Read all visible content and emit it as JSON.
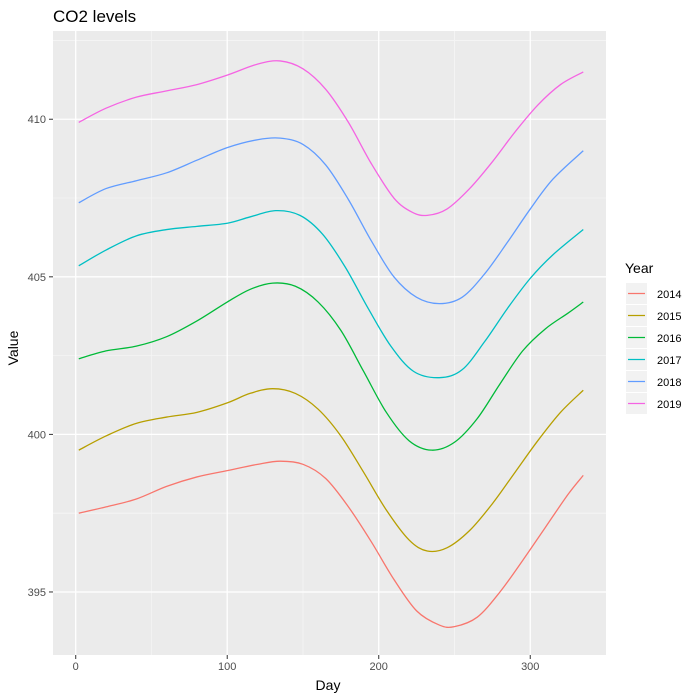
{
  "chart_data": {
    "type": "line",
    "title": "CO2 levels",
    "xlabel": "Day",
    "ylabel": "Value",
    "xlim": [
      -15,
      350
    ],
    "ylim": [
      393,
      412.8
    ],
    "x_ticks": [
      0,
      100,
      200,
      300
    ],
    "y_ticks": [
      395,
      400,
      405,
      410
    ],
    "grid": true,
    "legend": {
      "title": "Year",
      "placement": "right"
    },
    "series": [
      {
        "name": "2014",
        "color": "#F8766D",
        "points": [
          [
            2,
            397.5
          ],
          [
            20,
            397.7
          ],
          [
            40,
            397.95
          ],
          [
            60,
            398.35
          ],
          [
            80,
            398.65
          ],
          [
            100,
            398.85
          ],
          [
            120,
            399.05
          ],
          [
            135,
            399.15
          ],
          [
            150,
            399.05
          ],
          [
            165,
            398.6
          ],
          [
            180,
            397.7
          ],
          [
            195,
            396.6
          ],
          [
            210,
            395.4
          ],
          [
            225,
            394.4
          ],
          [
            240,
            393.95
          ],
          [
            250,
            393.9
          ],
          [
            265,
            394.2
          ],
          [
            280,
            395.0
          ],
          [
            295,
            396.0
          ],
          [
            310,
            397.05
          ],
          [
            325,
            398.1
          ],
          [
            335,
            398.7
          ]
        ]
      },
      {
        "name": "2015",
        "color": "#B79F00",
        "points": [
          [
            2,
            399.5
          ],
          [
            20,
            399.95
          ],
          [
            40,
            400.35
          ],
          [
            60,
            400.55
          ],
          [
            80,
            400.7
          ],
          [
            100,
            401.0
          ],
          [
            115,
            401.3
          ],
          [
            130,
            401.45
          ],
          [
            145,
            401.3
          ],
          [
            160,
            400.8
          ],
          [
            175,
            399.95
          ],
          [
            190,
            398.8
          ],
          [
            205,
            397.6
          ],
          [
            220,
            396.65
          ],
          [
            232,
            396.3
          ],
          [
            245,
            396.4
          ],
          [
            260,
            396.95
          ],
          [
            275,
            397.8
          ],
          [
            290,
            398.8
          ],
          [
            305,
            399.8
          ],
          [
            320,
            400.7
          ],
          [
            335,
            401.4
          ]
        ]
      },
      {
        "name": "2016",
        "color": "#00BA38",
        "points": [
          [
            2,
            402.4
          ],
          [
            20,
            402.65
          ],
          [
            40,
            402.8
          ],
          [
            60,
            403.1
          ],
          [
            80,
            403.6
          ],
          [
            100,
            404.2
          ],
          [
            115,
            404.6
          ],
          [
            130,
            404.8
          ],
          [
            145,
            404.7
          ],
          [
            160,
            404.2
          ],
          [
            175,
            403.3
          ],
          [
            190,
            402.0
          ],
          [
            205,
            400.7
          ],
          [
            220,
            399.8
          ],
          [
            235,
            399.5
          ],
          [
            250,
            399.75
          ],
          [
            265,
            400.5
          ],
          [
            280,
            401.6
          ],
          [
            295,
            402.65
          ],
          [
            310,
            403.35
          ],
          [
            325,
            403.85
          ],
          [
            335,
            404.2
          ]
        ]
      },
      {
        "name": "2017",
        "color": "#00BFC4",
        "points": [
          [
            2,
            405.35
          ],
          [
            20,
            405.85
          ],
          [
            40,
            406.3
          ],
          [
            60,
            406.5
          ],
          [
            80,
            406.6
          ],
          [
            100,
            406.7
          ],
          [
            115,
            406.9
          ],
          [
            132,
            407.1
          ],
          [
            148,
            406.95
          ],
          [
            163,
            406.35
          ],
          [
            178,
            405.3
          ],
          [
            193,
            404.0
          ],
          [
            208,
            402.8
          ],
          [
            223,
            402.0
          ],
          [
            240,
            401.8
          ],
          [
            255,
            402.05
          ],
          [
            270,
            402.95
          ],
          [
            285,
            404.0
          ],
          [
            300,
            404.95
          ],
          [
            315,
            405.7
          ],
          [
            335,
            406.5
          ]
        ]
      },
      {
        "name": "2018",
        "color": "#619CFF",
        "points": [
          [
            2,
            407.35
          ],
          [
            20,
            407.8
          ],
          [
            40,
            408.05
          ],
          [
            60,
            408.3
          ],
          [
            80,
            408.7
          ],
          [
            100,
            409.1
          ],
          [
            120,
            409.35
          ],
          [
            135,
            409.4
          ],
          [
            150,
            409.2
          ],
          [
            165,
            408.55
          ],
          [
            180,
            407.45
          ],
          [
            195,
            406.15
          ],
          [
            210,
            405.0
          ],
          [
            225,
            404.35
          ],
          [
            240,
            404.15
          ],
          [
            255,
            404.35
          ],
          [
            270,
            405.1
          ],
          [
            285,
            406.1
          ],
          [
            300,
            407.15
          ],
          [
            315,
            408.1
          ],
          [
            335,
            409.0
          ]
        ]
      },
      {
        "name": "2019",
        "color": "#F564E3",
        "points": [
          [
            2,
            409.9
          ],
          [
            20,
            410.35
          ],
          [
            40,
            410.7
          ],
          [
            60,
            410.9
          ],
          [
            80,
            411.1
          ],
          [
            100,
            411.4
          ],
          [
            120,
            411.75
          ],
          [
            135,
            411.85
          ],
          [
            150,
            411.6
          ],
          [
            165,
            410.95
          ],
          [
            180,
            409.9
          ],
          [
            195,
            408.6
          ],
          [
            210,
            407.5
          ],
          [
            222,
            407.05
          ],
          [
            232,
            406.95
          ],
          [
            245,
            407.15
          ],
          [
            260,
            407.8
          ],
          [
            275,
            408.65
          ],
          [
            290,
            409.6
          ],
          [
            305,
            410.45
          ],
          [
            320,
            411.1
          ],
          [
            335,
            411.5
          ]
        ]
      }
    ]
  }
}
